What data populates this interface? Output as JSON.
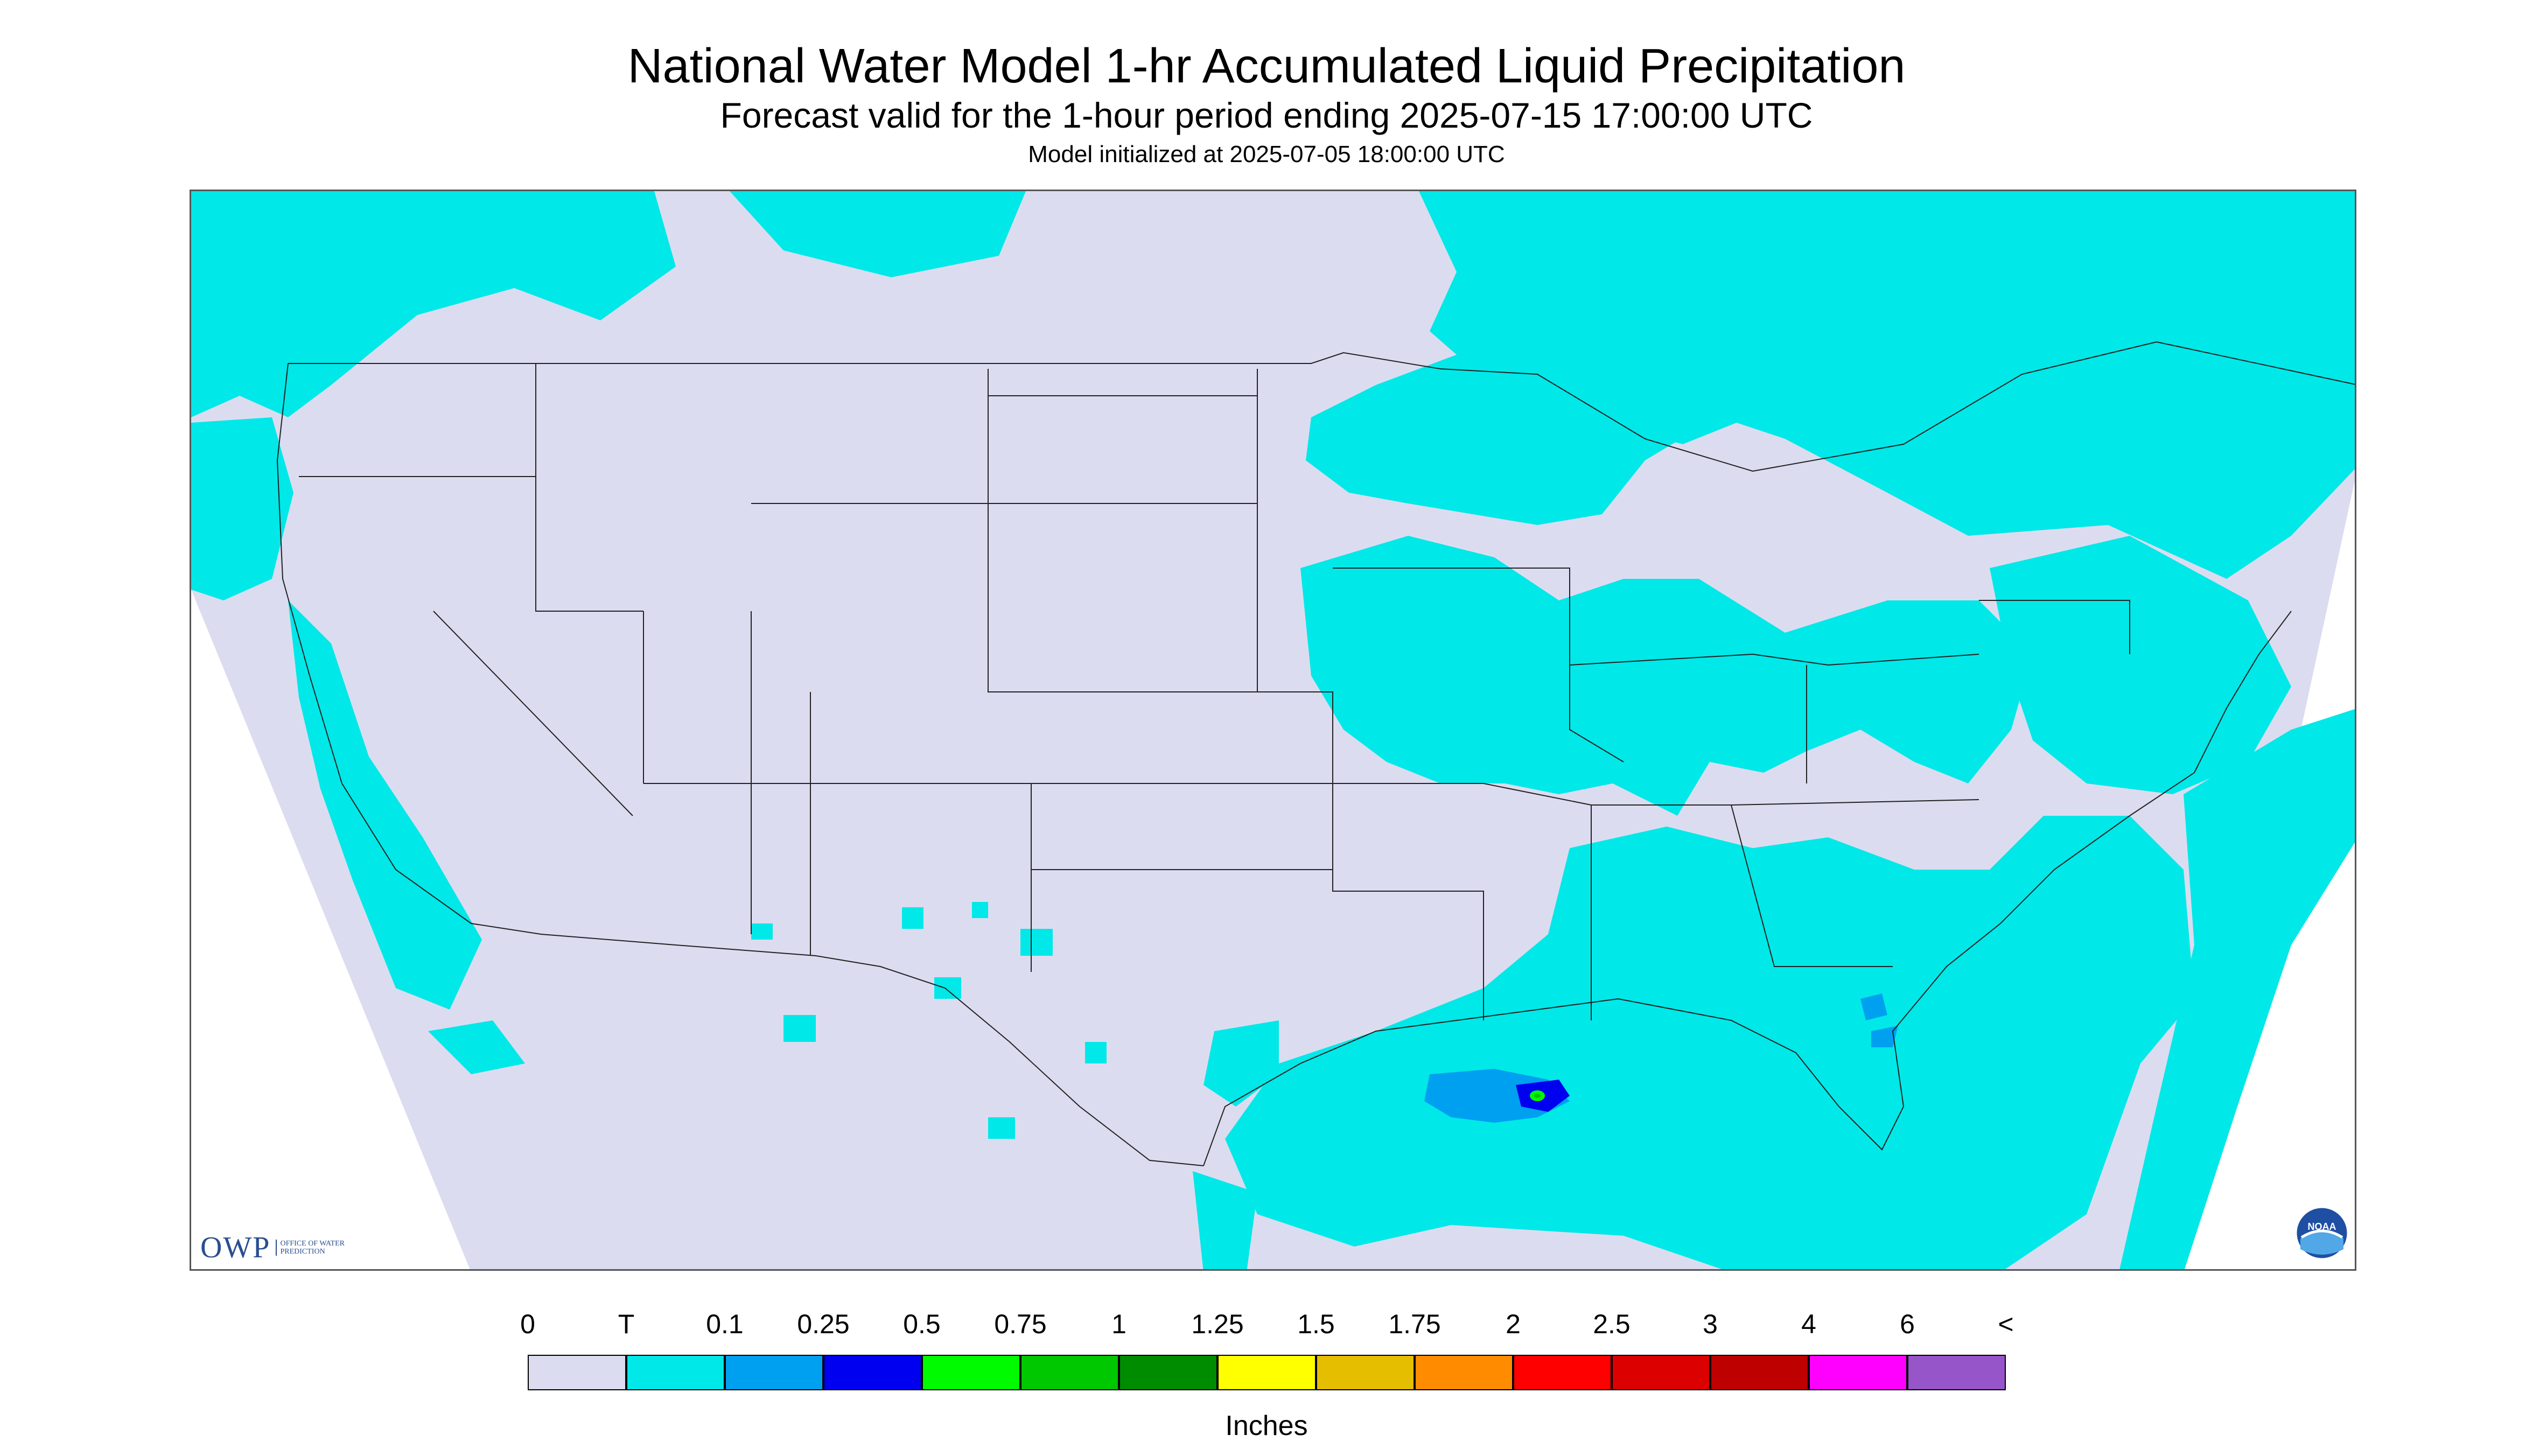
{
  "header": {
    "title": "National Water Model 1-hr Accumulated Liquid Precipitation",
    "subtitle": "Forecast valid for the 1-hour period ending 2025-07-15 17:00:00 UTC",
    "init": "Model initialized at 2025-07-05 18:00:00 UTC"
  },
  "map": {
    "region": "Continental United States",
    "background_color": "#dcdcf0",
    "trace_color": "#00e8e8",
    "hotspot": {
      "location": "Gulf of Mexico south of Mississippi/Alabama coast",
      "max_category": "0.75"
    }
  },
  "legend": {
    "labels": [
      "0",
      "T",
      "0.1",
      "0.25",
      "0.5",
      "0.75",
      "1",
      "1.25",
      "1.5",
      "1.75",
      "2",
      "2.5",
      "3",
      "4",
      "6",
      "<"
    ],
    "colors": [
      "#dcdcf0",
      "#00e8e8",
      "#00a0f0",
      "#0000f0",
      "#00fa00",
      "#00c800",
      "#008c00",
      "#ffff00",
      "#e6be00",
      "#ff8c00",
      "#ff0000",
      "#dc0000",
      "#be0000",
      "#ff00ff",
      "#9655c8"
    ],
    "units": "Inches"
  },
  "logos": {
    "owp": "OWP",
    "owp_sub": "OFFICE OF WATER PREDICTION",
    "noaa": "NOAA"
  }
}
